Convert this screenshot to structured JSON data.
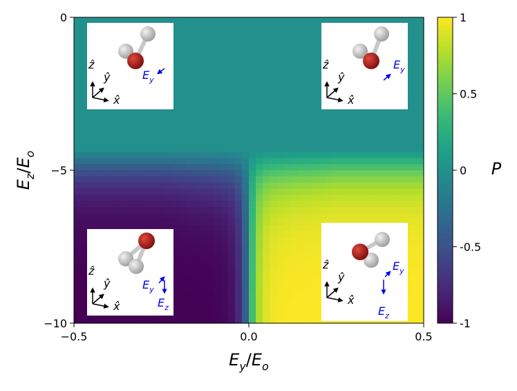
{
  "chart_data": {
    "type": "heatmap",
    "title": "",
    "xlabel": {
      "base": "E",
      "sub": "y",
      "sep": "/",
      "base2": "E",
      "sub2": "o"
    },
    "ylabel": {
      "base": "E",
      "sub": "z",
      "sep": "/",
      "base2": "E",
      "sub2": "o"
    },
    "xlim": [
      -0.5,
      0.5
    ],
    "ylim": [
      -10,
      0
    ],
    "xticks": [
      {
        "value": -0.5,
        "label": "−0.5"
      },
      {
        "value": 0.0,
        "label": "0.0"
      },
      {
        "value": 0.5,
        "label": "0.5"
      }
    ],
    "yticks": [
      {
        "value": 0,
        "label": "0"
      },
      {
        "value": -5,
        "label": "−5"
      },
      {
        "value": -10,
        "label": "−10"
      }
    ],
    "grid": {
      "nx": 50,
      "ny": 50
    },
    "field_description": "P ≈ 0 for E_z above about -4.3 E_o; below that, P → -1 for E_y < 0 and P → +1 for E_y > 0, with a smooth transition near the origin",
    "colorbar": {
      "label": "P",
      "range": [
        -1,
        1
      ],
      "colormap": "viridis",
      "ticks": [
        {
          "value": 1,
          "label": "1"
        },
        {
          "value": 0.5,
          "label": "0.5"
        },
        {
          "value": 0,
          "label": "0"
        },
        {
          "value": -0.5,
          "label": "-0.5"
        },
        {
          "value": -1,
          "label": "-1"
        }
      ]
    },
    "insets": [
      {
        "position": "top-left",
        "molecule_color": "#b3201d",
        "field_labels": [
          "E_y"
        ]
      },
      {
        "position": "top-right",
        "molecule_color": "#b3201d",
        "field_labels": [
          "E_y"
        ]
      },
      {
        "position": "bottom-left",
        "molecule_color": "#b3201d",
        "field_labels": [
          "E_y",
          "E_z"
        ]
      },
      {
        "position": "bottom-right",
        "molecule_color": "#b3201d",
        "field_labels": [
          "E_y",
          "E_z"
        ]
      }
    ],
    "axis_glyphs": {
      "x": "x̂",
      "y": "ŷ",
      "z": "ẑ"
    },
    "field_color": "#0000ee"
  }
}
